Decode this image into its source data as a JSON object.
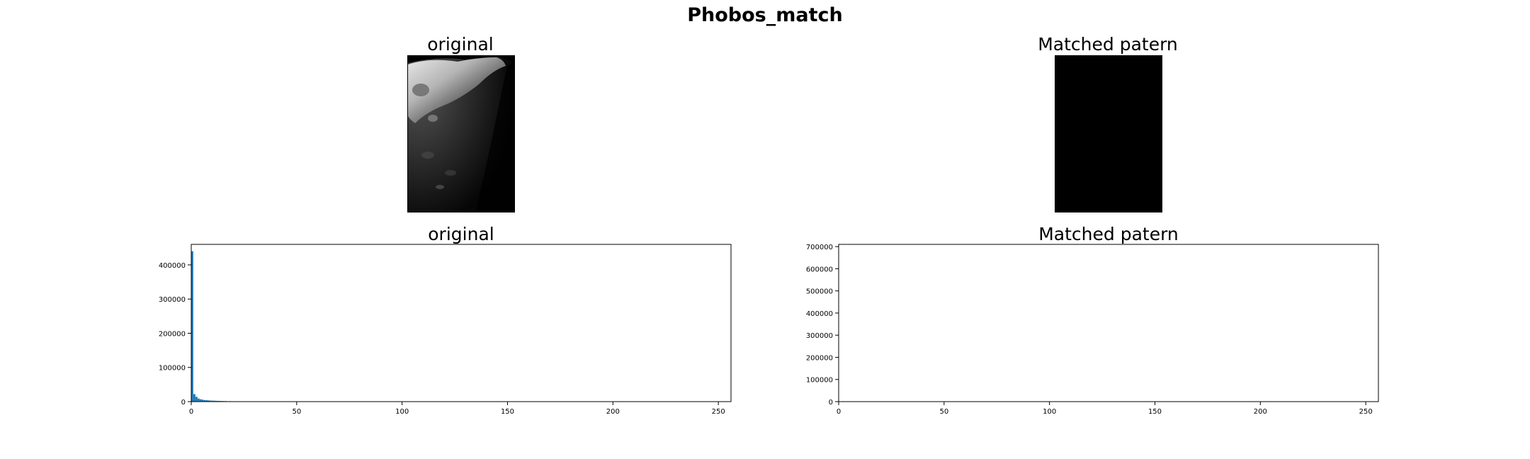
{
  "figure": {
    "title": "Phobos_match",
    "top_left_title": "original",
    "top_right_title": "Matched patern"
  },
  "colors": {
    "bar": "#1f77b4",
    "axis": "#000000",
    "image_background": "#000000"
  },
  "chart_data": [
    {
      "type": "bar",
      "title": "original",
      "xlabel": "",
      "ylabel": "",
      "xlim": [
        0,
        256
      ],
      "ylim": [
        0,
        460000
      ],
      "xticks": [
        0,
        50,
        100,
        150,
        200,
        250
      ],
      "yticks": [
        0,
        100000,
        200000,
        300000,
        400000
      ],
      "grid": false,
      "series": [
        {
          "x": [
            0,
            1,
            2,
            3,
            4,
            5,
            6,
            7,
            8,
            9,
            10,
            11,
            12,
            13,
            14,
            15,
            16,
            18,
            20,
            22,
            24,
            26,
            28,
            30,
            32,
            35,
            43,
            195,
            198,
            200,
            203,
            205,
            208,
            210,
            213,
            215,
            218,
            220,
            223,
            225,
            228,
            230,
            232
          ],
          "values": [
            440000,
            22000,
            14000,
            9000,
            7000,
            5500,
            4500,
            4000,
            3500,
            3000,
            2800,
            2500,
            2200,
            2000,
            1800,
            1600,
            1500,
            1300,
            1100,
            1000,
            900,
            800,
            700,
            650,
            600,
            500,
            400,
            300,
            400,
            500,
            450,
            400,
            500,
            450,
            400,
            500,
            450,
            400,
            500,
            450,
            400,
            350,
            300
          ]
        }
      ]
    },
    {
      "type": "bar",
      "title": "Matched patern",
      "xlabel": "",
      "ylabel": "",
      "xlim": [
        0,
        256
      ],
      "ylim": [
        0,
        710000
      ],
      "xticks": [
        0,
        50,
        100,
        150,
        200,
        250
      ],
      "yticks": [
        0,
        100000,
        200000,
        300000,
        400000,
        500000,
        600000,
        700000
      ],
      "grid": false,
      "series": [
        {
          "x": [
            0
          ],
          "values": [
            0
          ]
        }
      ]
    }
  ]
}
